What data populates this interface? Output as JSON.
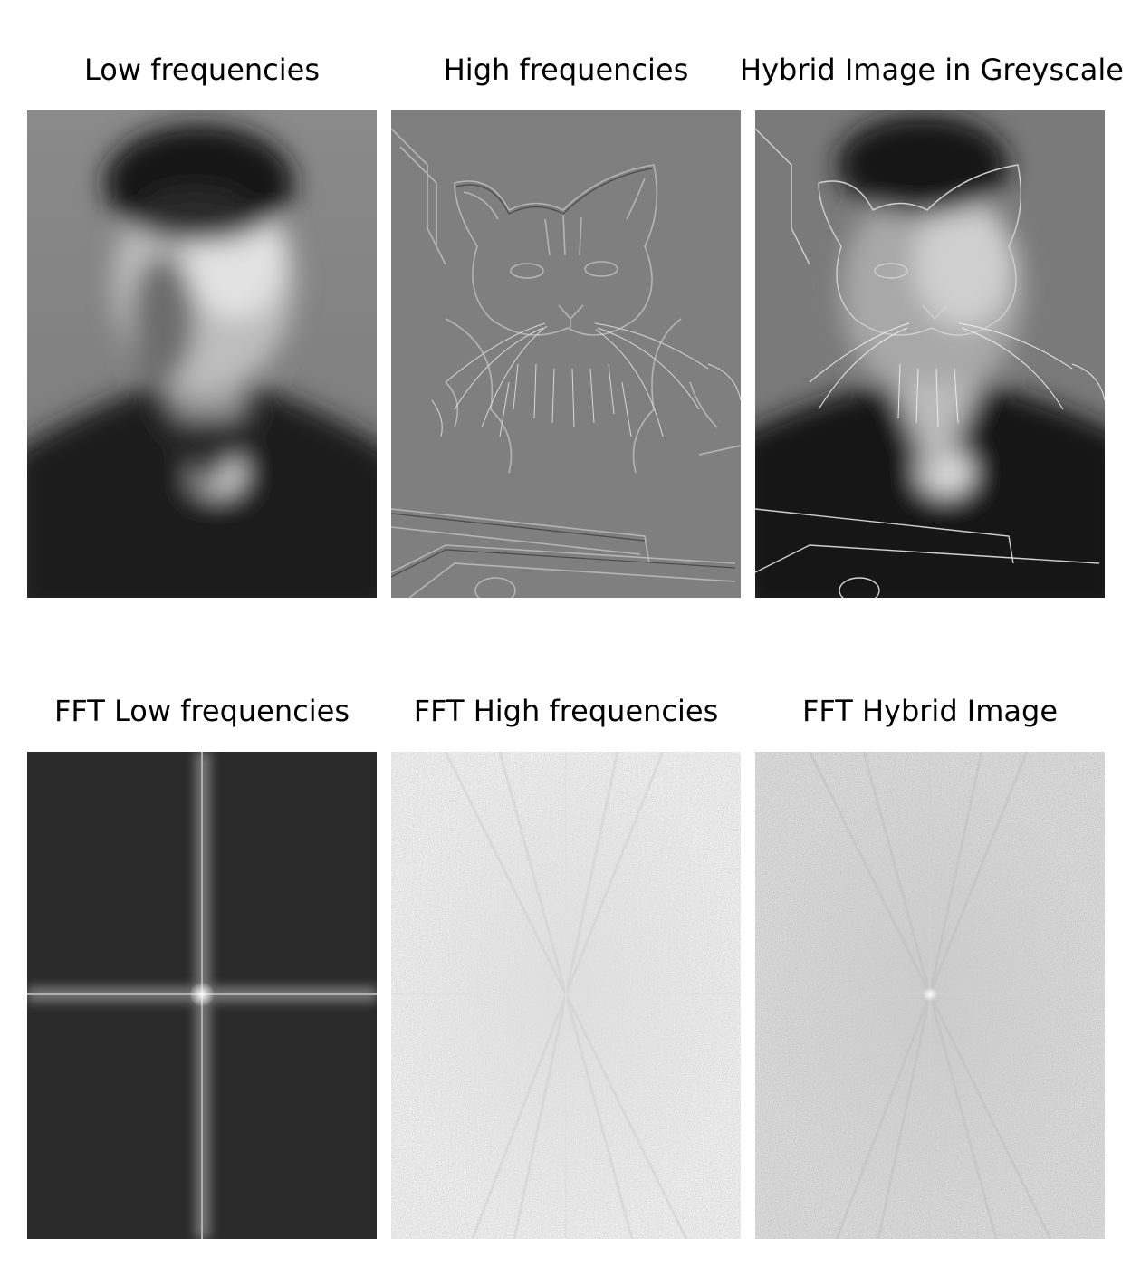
{
  "figure": {
    "panels": [
      {
        "id": "low",
        "title": "Low frequencies"
      },
      {
        "id": "high",
        "title": "High frequencies"
      },
      {
        "id": "hybrid",
        "title": "Hybrid Image in Greyscale"
      },
      {
        "id": "fft_low",
        "title": "FFT Low frequencies"
      },
      {
        "id": "fft_high",
        "title": "FFT High frequencies"
      },
      {
        "id": "fft_hybrid",
        "title": "FFT Hybrid Image"
      }
    ]
  }
}
